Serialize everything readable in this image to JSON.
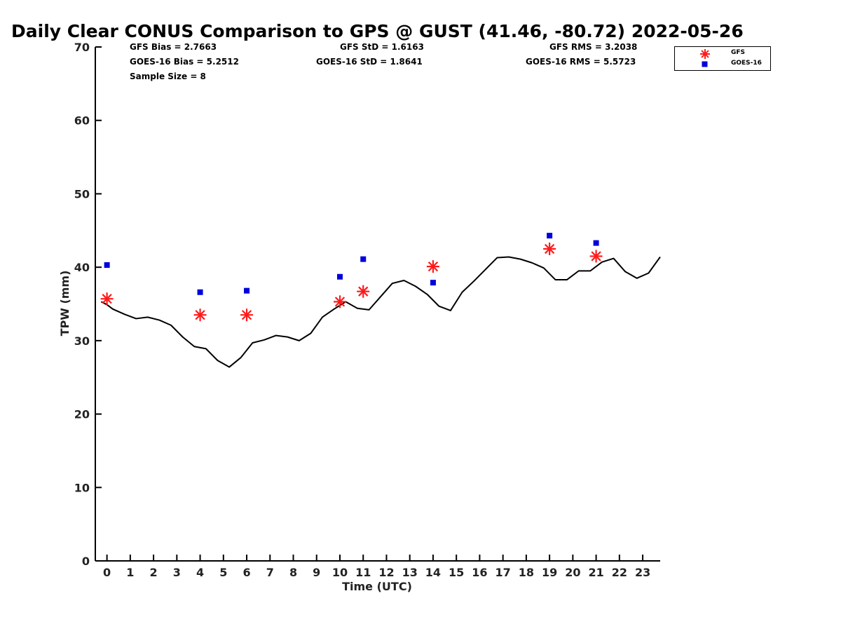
{
  "title": "Daily Clear CONUS Comparison to GPS @ GUST (41.46, -80.72) 2022-05-26",
  "stats": {
    "gfs_bias": "GFS Bias = 2.7663",
    "goes_bias": "GOES-16 Bias = 5.2512",
    "sample_size": "Sample Size = 8",
    "gfs_std": "GFS StD = 1.6163",
    "goes_std": "GOES-16 StD = 1.8641",
    "gfs_rms": "GFS RMS = 3.2038",
    "goes_rms": "GOES-16 RMS = 5.5723"
  },
  "legend": {
    "gfs": "GFS",
    "goes": "GOES-16"
  },
  "colors": {
    "gfs": "#ff1a1a",
    "goes": "#0000dd",
    "gps": "#000000"
  },
  "chart_data": {
    "type": "line",
    "xlabel": "Time (UTC)",
    "ylabel": "TPW (mm)",
    "xlim": [
      -0.5,
      23.75
    ],
    "ylim": [
      0,
      70
    ],
    "xticks": [
      0,
      1,
      2,
      3,
      4,
      5,
      6,
      7,
      8,
      9,
      10,
      11,
      12,
      13,
      14,
      15,
      16,
      17,
      18,
      19,
      20,
      21,
      22,
      23
    ],
    "yticks": [
      0,
      10,
      20,
      30,
      40,
      50,
      60,
      70
    ],
    "legend_position": "top-right (outside plot)",
    "grid": false,
    "series": [
      {
        "name": "",
        "kind": "line",
        "x": [
          -0.25,
          0.0,
          0.25,
          0.75,
          1.25,
          1.75,
          2.25,
          2.75,
          3.25,
          3.75,
          4.25,
          4.75,
          5.25,
          5.75,
          6.25,
          6.75,
          7.25,
          7.75,
          8.25,
          8.75,
          9.25,
          9.75,
          10.25,
          10.75,
          11.25,
          11.75,
          12.25,
          12.75,
          13.25,
          13.75,
          14.25,
          14.75,
          15.25,
          15.75,
          16.25,
          16.75,
          17.25,
          17.75,
          18.25,
          18.75,
          19.25,
          19.75,
          20.25,
          20.75,
          21.25,
          21.75,
          22.25,
          22.75,
          23.25,
          23.75
        ],
        "y": [
          35.3,
          34.9,
          34.3,
          33.6,
          33.0,
          33.2,
          32.8,
          32.1,
          30.5,
          29.2,
          28.9,
          27.3,
          26.4,
          27.7,
          29.7,
          30.1,
          30.7,
          30.5,
          30.0,
          31.0,
          33.2,
          34.3,
          35.3,
          34.4,
          34.2,
          36.0,
          37.8,
          38.2,
          37.4,
          36.3,
          34.7,
          34.1,
          36.6,
          38.1,
          39.7,
          41.3,
          41.4,
          41.1,
          40.6,
          39.9,
          38.3,
          38.3,
          39.5,
          39.5,
          40.7,
          41.2,
          39.4,
          38.5,
          39.2,
          41.4
        ]
      },
      {
        "name": "GFS",
        "kind": "star",
        "x": [
          0,
          4,
          6,
          10,
          11,
          14,
          19,
          21
        ],
        "y": [
          35.7,
          33.5,
          33.5,
          35.3,
          36.7,
          40.1,
          42.5,
          41.5
        ]
      },
      {
        "name": "GOES-16",
        "kind": "square",
        "x": [
          0,
          4,
          6,
          10,
          11,
          14,
          19,
          21
        ],
        "y": [
          40.3,
          36.6,
          36.8,
          38.7,
          41.1,
          37.9,
          44.3,
          43.3
        ]
      }
    ]
  }
}
